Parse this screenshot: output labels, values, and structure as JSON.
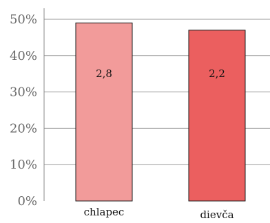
{
  "chart_data": {
    "type": "bar",
    "categories": [
      "chlapec",
      "dievča"
    ],
    "values": [
      49,
      47
    ],
    "data_labels": [
      "2,8",
      "2,2"
    ],
    "colors": [
      "#f29b9a",
      "#eb5f5f"
    ],
    "ylim": [
      0,
      50
    ],
    "yticks": [
      0,
      10,
      20,
      30,
      40,
      50
    ],
    "ytick_labels": [
      "0%",
      "10%",
      "20%",
      "30%",
      "40%",
      "50%"
    ],
    "grid": true,
    "title": "",
    "xlabel": "",
    "ylabel": ""
  }
}
